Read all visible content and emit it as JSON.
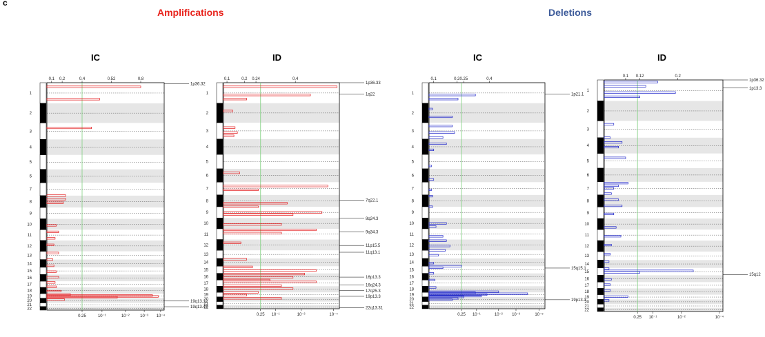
{
  "panel_letter": "c",
  "headers": {
    "amplifications": "Amplifications",
    "deletions": "Deletions"
  },
  "colors": {
    "amplification": "#e31a1c",
    "deletion": "#1f26c9",
    "threshold_line": "#7fcf7f",
    "band": "#e6e6e6"
  },
  "chromosomes": [
    "1",
    "2",
    "3",
    "4",
    "5",
    "6",
    "7",
    "8",
    "9",
    "10",
    "11",
    "12",
    "13",
    "14",
    "15",
    "16",
    "17",
    "18",
    "19",
    "20",
    "21",
    "22"
  ],
  "chart_data": [
    {
      "type": "bar",
      "title": "IC",
      "group": "Amplifications",
      "color": "#e31a1c",
      "top_ticks": [
        "0.1",
        "0.2",
        "0.4",
        "0.52",
        "0.8"
      ],
      "bottom_ticks": [
        "0.25",
        "10⁻¹",
        "10⁻²",
        "10⁻³",
        "10⁻⁴"
      ],
      "threshold": 0.25,
      "peaks": [
        "1p36.32",
        "19q13.12",
        "19q13.43"
      ],
      "bars": [
        {
          "pos": 0.2,
          "v": 0.8
        },
        {
          "pos": 0.8,
          "v": 0.45
        },
        {
          "pos": 2.3,
          "v": 0.38
        },
        {
          "pos": 7.0,
          "v": 0.16
        },
        {
          "pos": 7.3,
          "v": 0.16
        },
        {
          "pos": 7.6,
          "v": 0.14
        },
        {
          "pos": 9.6,
          "v": 0.08
        },
        {
          "pos": 10.2,
          "v": 0.1
        },
        {
          "pos": 10.8,
          "v": 0.07
        },
        {
          "pos": 11.4,
          "v": 0.06
        },
        {
          "pos": 12.2,
          "v": 0.1
        },
        {
          "pos": 13.0,
          "v": 0.05
        },
        {
          "pos": 13.8,
          "v": 0.06
        },
        {
          "pos": 14.6,
          "v": 0.08
        },
        {
          "pos": 15.4,
          "v": 0.1
        },
        {
          "pos": 16.2,
          "v": 0.07
        },
        {
          "pos": 16.9,
          "v": 0.08
        },
        {
          "pos": 17.6,
          "v": 0.12
        },
        {
          "pos": 18.2,
          "v": 0.2
        },
        {
          "pos": 18.4,
          "v": 0.9
        },
        {
          "pos": 18.6,
          "v": 0.95
        },
        {
          "pos": 18.8,
          "v": 0.6
        },
        {
          "pos": 19.3,
          "v": 0.15
        }
      ]
    },
    {
      "type": "bar",
      "title": "ID",
      "group": "Amplifications",
      "color": "#e31a1c",
      "top_ticks": [
        "0.1",
        "0.2",
        "0.24",
        "0.4"
      ],
      "bottom_ticks": [
        "0.25",
        "10⁻¹",
        "10⁻²",
        "10⁻⁴"
      ],
      "threshold": 0.25,
      "peaks": [
        "1p36.33",
        "1q22",
        "7q22.1",
        "8q24.3",
        "9q34.3",
        "11p15.5",
        "11q13.1",
        "16p13.3",
        "16q24.3",
        "17q25.3",
        "19p13.3",
        "22q13.31"
      ],
      "bars": [
        {
          "pos": 0.2,
          "v": 0.98
        },
        {
          "pos": 0.6,
          "v": 0.75
        },
        {
          "pos": 0.8,
          "v": 0.2
        },
        {
          "pos": 1.4,
          "v": 0.08
        },
        {
          "pos": 2.3,
          "v": 0.1
        },
        {
          "pos": 2.6,
          "v": 0.12
        },
        {
          "pos": 2.8,
          "v": 0.09
        },
        {
          "pos": 5.3,
          "v": 0.14
        },
        {
          "pos": 6.3,
          "v": 0.9
        },
        {
          "pos": 6.6,
          "v": 0.3
        },
        {
          "pos": 7.7,
          "v": 0.55
        },
        {
          "pos": 8.0,
          "v": 0.3
        },
        {
          "pos": 8.5,
          "v": 0.85
        },
        {
          "pos": 8.7,
          "v": 0.6
        },
        {
          "pos": 9.6,
          "v": 0.5
        },
        {
          "pos": 10.1,
          "v": 0.8
        },
        {
          "pos": 10.4,
          "v": 0.5
        },
        {
          "pos": 11.3,
          "v": 0.15
        },
        {
          "pos": 13.1,
          "v": 0.2
        },
        {
          "pos": 14.1,
          "v": 0.25
        },
        {
          "pos": 14.6,
          "v": 0.8
        },
        {
          "pos": 15.1,
          "v": 0.7
        },
        {
          "pos": 15.6,
          "v": 0.6
        },
        {
          "pos": 16.0,
          "v": 0.4
        },
        {
          "pos": 16.3,
          "v": 0.8
        },
        {
          "pos": 16.9,
          "v": 0.5
        },
        {
          "pos": 17.4,
          "v": 0.6
        },
        {
          "pos": 18.0,
          "v": 0.3
        },
        {
          "pos": 18.6,
          "v": 0.2
        },
        {
          "pos": 19.3,
          "v": 0.5
        }
      ]
    },
    {
      "type": "bar",
      "title": "IC",
      "group": "Deletions",
      "color": "#1f26c9",
      "top_ticks": [
        "0.1",
        "0.2",
        "0.25",
        "0.4"
      ],
      "bottom_ticks": [
        "0.25",
        "10⁻¹",
        "10⁻²",
        "10⁻³",
        "10⁻⁵"
      ],
      "threshold": 0.25,
      "peaks": [
        "1p21.1",
        "15q15.1",
        "19p13.3"
      ],
      "bars": [
        {
          "pos": 0.6,
          "v": 0.4
        },
        {
          "pos": 0.8,
          "v": 0.25
        },
        {
          "pos": 1.3,
          "v": 0.03
        },
        {
          "pos": 1.7,
          "v": 0.2
        },
        {
          "pos": 2.2,
          "v": 0.2
        },
        {
          "pos": 2.6,
          "v": 0.22
        },
        {
          "pos": 2.9,
          "v": 0.12
        },
        {
          "pos": 3.3,
          "v": 0.15
        },
        {
          "pos": 3.7,
          "v": 0.04
        },
        {
          "pos": 4.8,
          "v": 0.02
        },
        {
          "pos": 5.8,
          "v": 0.04
        },
        {
          "pos": 6.6,
          "v": 0.02
        },
        {
          "pos": 7.1,
          "v": 0.03
        },
        {
          "pos": 8.0,
          "v": 0.03
        },
        {
          "pos": 9.5,
          "v": 0.15
        },
        {
          "pos": 9.8,
          "v": 0.06
        },
        {
          "pos": 10.7,
          "v": 0.12
        },
        {
          "pos": 11.1,
          "v": 0.15
        },
        {
          "pos": 11.6,
          "v": 0.18
        },
        {
          "pos": 12.0,
          "v": 0.14
        },
        {
          "pos": 12.6,
          "v": 0.08
        },
        {
          "pos": 13.6,
          "v": 0.04
        },
        {
          "pos": 14.0,
          "v": 0.28
        },
        {
          "pos": 14.2,
          "v": 0.12
        },
        {
          "pos": 15.0,
          "v": 0.04
        },
        {
          "pos": 16.0,
          "v": 0.05
        },
        {
          "pos": 17.2,
          "v": 0.06
        },
        {
          "pos": 17.9,
          "v": 0.6
        },
        {
          "pos": 18.1,
          "v": 0.4
        },
        {
          "pos": 18.3,
          "v": 0.85
        },
        {
          "pos": 18.5,
          "v": 0.5
        },
        {
          "pos": 18.8,
          "v": 0.45
        },
        {
          "pos": 19.0,
          "v": 0.3
        },
        {
          "pos": 19.3,
          "v": 0.25
        },
        {
          "pos": 19.6,
          "v": 0.2
        }
      ]
    },
    {
      "type": "bar",
      "title": "ID",
      "group": "Deletions",
      "color": "#1f26c9",
      "top_ticks": [
        "0.1",
        "0.12",
        "0.2"
      ],
      "bottom_ticks": [
        "0.25",
        "10⁻¹",
        "10⁻²",
        "10⁻⁴"
      ],
      "threshold": 0.25,
      "peaks": [
        "1p36.32",
        "1p13.3",
        "15q12"
      ],
      "bars": [
        {
          "pos": 0.1,
          "v": 0.45
        },
        {
          "pos": 0.3,
          "v": 0.35
        },
        {
          "pos": 0.6,
          "v": 0.6
        },
        {
          "pos": 0.8,
          "v": 0.3
        },
        {
          "pos": 2.2,
          "v": 0.08
        },
        {
          "pos": 3.0,
          "v": 0.05
        },
        {
          "pos": 3.3,
          "v": 0.15
        },
        {
          "pos": 3.6,
          "v": 0.12
        },
        {
          "pos": 4.3,
          "v": 0.18
        },
        {
          "pos": 6.1,
          "v": 0.2
        },
        {
          "pos": 6.3,
          "v": 0.12
        },
        {
          "pos": 6.5,
          "v": 0.08
        },
        {
          "pos": 6.9,
          "v": 0.06
        },
        {
          "pos": 7.4,
          "v": 0.12
        },
        {
          "pos": 7.9,
          "v": 0.15
        },
        {
          "pos": 8.6,
          "v": 0.08
        },
        {
          "pos": 9.8,
          "v": 0.1
        },
        {
          "pos": 10.6,
          "v": 0.14
        },
        {
          "pos": 11.4,
          "v": 0.06
        },
        {
          "pos": 12.3,
          "v": 0.05
        },
        {
          "pos": 13.2,
          "v": 0.04
        },
        {
          "pos": 14.1,
          "v": 0.04
        },
        {
          "pos": 14.4,
          "v": 0.75
        },
        {
          "pos": 14.6,
          "v": 0.3
        },
        {
          "pos": 15.6,
          "v": 0.06
        },
        {
          "pos": 16.4,
          "v": 0.05
        },
        {
          "pos": 17.3,
          "v": 0.05
        },
        {
          "pos": 18.4,
          "v": 0.2
        },
        {
          "pos": 19.2,
          "v": 0.04
        }
      ]
    }
  ]
}
